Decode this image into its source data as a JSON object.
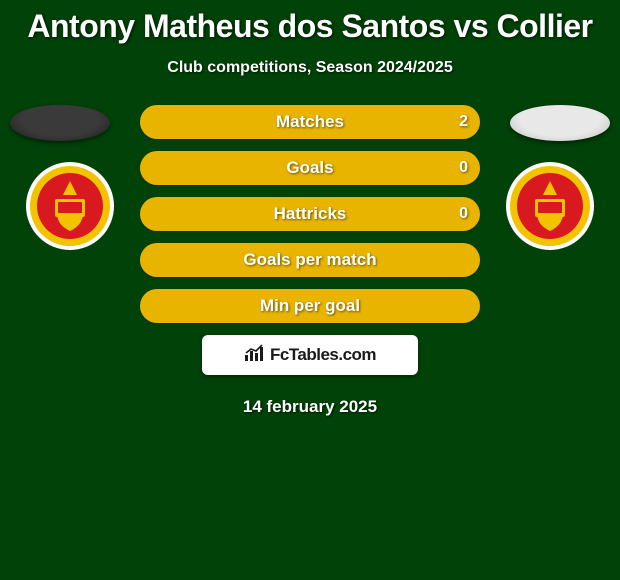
{
  "title": "Antony Matheus dos Santos vs Collier",
  "subtitle": "Club competitions, Season 2024/2025",
  "date": "14 february 2025",
  "background_color": "#004208",
  "branding": {
    "label": "FcTables.com"
  },
  "avatars": {
    "left_color": "#3a3a3a",
    "right_color": "#e8e8e8"
  },
  "players": {
    "left": {
      "color": "#e8b400",
      "crest_bg": "#ffffff",
      "crest_red": "#d81920",
      "crest_yellow": "#f3c200"
    },
    "right": {
      "color": "#e8b400",
      "crest_bg": "#ffffff",
      "crest_red": "#d81920",
      "crest_yellow": "#f3c200"
    }
  },
  "bars": [
    {
      "label": "Matches",
      "left_value": "",
      "right_value": "2",
      "left_pct": 50,
      "right_pct": 50,
      "show_left": false,
      "show_right": true
    },
    {
      "label": "Goals",
      "left_value": "",
      "right_value": "0",
      "left_pct": 50,
      "right_pct": 50,
      "show_left": false,
      "show_right": true
    },
    {
      "label": "Hattricks",
      "left_value": "",
      "right_value": "0",
      "left_pct": 50,
      "right_pct": 50,
      "show_left": false,
      "show_right": true
    },
    {
      "label": "Goals per match",
      "left_value": "",
      "right_value": "",
      "left_pct": 50,
      "right_pct": 50,
      "show_left": false,
      "show_right": false
    },
    {
      "label": "Min per goal",
      "left_value": "",
      "right_value": "",
      "left_pct": 99,
      "right_pct": 1,
      "show_left": false,
      "show_right": false
    }
  ],
  "bar_style": {
    "height": 34,
    "gap": 12,
    "radius": 17,
    "label_fontsize": 17,
    "value_fontsize": 16,
    "neutral_color": "#2a7a33"
  }
}
